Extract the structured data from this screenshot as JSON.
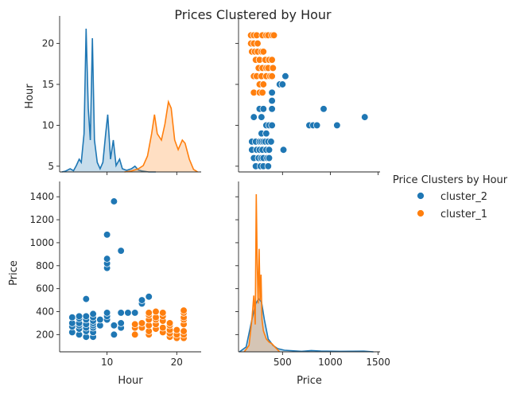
{
  "chart_data": {
    "type": "scatter",
    "title": "Prices Clustered by Hour",
    "variables": [
      "Hour",
      "Price"
    ],
    "legend": {
      "title": "Price Clusters by Hour",
      "position": "right",
      "entries": [
        {
          "name": "cluster_2",
          "color": "#1f77b4"
        },
        {
          "name": "cluster_1",
          "color": "#ff7f0e"
        }
      ]
    },
    "axes": {
      "Hour": {
        "range": [
          3.2,
          23.5
        ],
        "ticks": [
          10,
          20
        ],
        "tick_labels": [
          "10",
          "20"
        ],
        "y_ticks": [
          5,
          10,
          15,
          20
        ],
        "y_tick_labels": [
          "5",
          "10",
          "15",
          "20"
        ],
        "y_range": [
          4.3,
          22.2
        ]
      },
      "Price": {
        "range": [
          40,
          1520
        ],
        "ticks": [
          500,
          1000,
          1500
        ],
        "tick_labels": [
          "500",
          "1000",
          "1500"
        ],
        "y_ticks": [
          200,
          400,
          600,
          800,
          1000,
          1200,
          1400
        ],
        "y_tick_labels": [
          "200",
          "400",
          "600",
          "800",
          "1000",
          "1200",
          "1400"
        ],
        "y_range": [
          50,
          1450
        ]
      }
    },
    "series": [
      {
        "name": "cluster_2",
        "color": "#1f77b4",
        "points": [
          [
            5,
            220
          ],
          [
            5,
            270
          ],
          [
            5,
            300
          ],
          [
            5,
            350
          ],
          [
            6,
            200
          ],
          [
            6,
            250
          ],
          [
            6,
            280
          ],
          [
            6,
            300
          ],
          [
            6,
            340
          ],
          [
            6,
            360
          ],
          [
            7,
            180
          ],
          [
            7,
            230
          ],
          [
            7,
            260
          ],
          [
            7,
            290
          ],
          [
            7,
            330
          ],
          [
            7,
            360
          ],
          [
            7,
            510
          ],
          [
            8,
            180
          ],
          [
            8,
            220
          ],
          [
            8,
            260
          ],
          [
            8,
            280
          ],
          [
            8,
            300
          ],
          [
            8,
            320
          ],
          [
            8,
            350
          ],
          [
            8,
            380
          ],
          [
            9,
            280
          ],
          [
            9,
            330
          ],
          [
            10,
            330
          ],
          [
            10,
            360
          ],
          [
            10,
            390
          ],
          [
            10,
            780
          ],
          [
            10,
            820
          ],
          [
            10,
            860
          ],
          [
            10,
            1070
          ],
          [
            11,
            200
          ],
          [
            11,
            280
          ],
          [
            11,
            1360
          ],
          [
            12,
            260
          ],
          [
            12,
            300
          ],
          [
            12,
            390
          ],
          [
            12,
            930
          ],
          [
            13,
            390
          ],
          [
            14,
            390
          ],
          [
            15,
            470
          ],
          [
            15,
            500
          ],
          [
            16,
            530
          ]
        ],
        "kde_hour": [
          [
            3.5,
            0
          ],
          [
            4,
            0.002
          ],
          [
            4.7,
            0.01
          ],
          [
            5.2,
            0.004
          ],
          [
            5.6,
            0.02
          ],
          [
            6.0,
            0.04
          ],
          [
            6.3,
            0.03
          ],
          [
            6.7,
            0.12
          ],
          [
            7.0,
            0.45
          ],
          [
            7.3,
            0.2
          ],
          [
            7.6,
            0.1
          ],
          [
            7.9,
            0.42
          ],
          [
            8.2,
            0.1
          ],
          [
            8.6,
            0.03
          ],
          [
            9.0,
            0.01
          ],
          [
            9.4,
            0.03
          ],
          [
            9.8,
            0.12
          ],
          [
            10.1,
            0.18
          ],
          [
            10.5,
            0.04
          ],
          [
            10.9,
            0.1
          ],
          [
            11.3,
            0.02
          ],
          [
            11.8,
            0.04
          ],
          [
            12.2,
            0.01
          ],
          [
            12.8,
            0.005
          ],
          [
            13.5,
            0.01
          ],
          [
            14.0,
            0.018
          ],
          [
            14.5,
            0.006
          ],
          [
            15.0,
            0.003
          ],
          [
            16,
            0
          ],
          [
            17,
            0
          ]
        ],
        "kde_price": [
          [
            50,
            0
          ],
          [
            120,
            0.0003
          ],
          [
            180,
            0.002
          ],
          [
            220,
            0.003
          ],
          [
            250,
            0.0033
          ],
          [
            280,
            0.0031
          ],
          [
            310,
            0.002
          ],
          [
            350,
            0.0008
          ],
          [
            400,
            0.0004
          ],
          [
            450,
            0.0002
          ],
          [
            520,
            0.0001
          ],
          [
            700,
            3e-05
          ],
          [
            800,
            8e-05
          ],
          [
            900,
            5e-05
          ],
          [
            1100,
            3e-05
          ],
          [
            1350,
            4e-05
          ],
          [
            1450,
            0
          ]
        ]
      },
      {
        "name": "cluster_1",
        "color": "#ff7f0e",
        "points": [
          [
            14,
            200
          ],
          [
            14,
            260
          ],
          [
            14,
            290
          ],
          [
            15,
            260
          ],
          [
            15,
            300
          ],
          [
            16,
            200
          ],
          [
            16,
            230
          ],
          [
            16,
            280
          ],
          [
            16,
            330
          ],
          [
            16,
            370
          ],
          [
            16,
            390
          ],
          [
            17,
            250
          ],
          [
            17,
            290
          ],
          [
            17,
            330
          ],
          [
            17,
            350
          ],
          [
            17,
            400
          ],
          [
            18,
            220
          ],
          [
            18,
            260
          ],
          [
            18,
            320
          ],
          [
            18,
            360
          ],
          [
            18,
            390
          ],
          [
            19,
            180
          ],
          [
            19,
            210
          ],
          [
            19,
            240
          ],
          [
            19,
            280
          ],
          [
            19,
            300
          ],
          [
            20,
            170
          ],
          [
            20,
            200
          ],
          [
            20,
            240
          ],
          [
            21,
            170
          ],
          [
            21,
            200
          ],
          [
            21,
            230
          ],
          [
            21,
            290
          ],
          [
            21,
            330
          ],
          [
            21,
            350
          ],
          [
            21,
            390
          ],
          [
            21,
            410
          ]
        ],
        "kde_hour": [
          [
            12.5,
            0
          ],
          [
            13.5,
            0.003
          ],
          [
            14.5,
            0.01
          ],
          [
            15.2,
            0.02
          ],
          [
            15.8,
            0.05
          ],
          [
            16.4,
            0.12
          ],
          [
            16.8,
            0.18
          ],
          [
            17.2,
            0.12
          ],
          [
            17.8,
            0.1
          ],
          [
            18.3,
            0.15
          ],
          [
            18.8,
            0.22
          ],
          [
            19.2,
            0.2
          ],
          [
            19.7,
            0.1
          ],
          [
            20.2,
            0.07
          ],
          [
            20.8,
            0.1
          ],
          [
            21.2,
            0.09
          ],
          [
            21.8,
            0.04
          ],
          [
            22.4,
            0.008
          ],
          [
            23.0,
            0
          ]
        ],
        "kde_price": [
          [
            100,
            0
          ],
          [
            150,
            0.0004
          ],
          [
            180,
            0.002
          ],
          [
            200,
            0.0035
          ],
          [
            215,
            0.0017
          ],
          [
            225,
            0.0098
          ],
          [
            235,
            0.0055
          ],
          [
            245,
            0.003
          ],
          [
            255,
            0.0064
          ],
          [
            265,
            0.0032
          ],
          [
            275,
            0.0048
          ],
          [
            285,
            0.002
          ],
          [
            300,
            0.0013
          ],
          [
            330,
            0.0008
          ],
          [
            360,
            0.0006
          ],
          [
            390,
            0.0005
          ],
          [
            420,
            0.0003
          ],
          [
            470,
            0
          ]
        ]
      }
    ]
  }
}
